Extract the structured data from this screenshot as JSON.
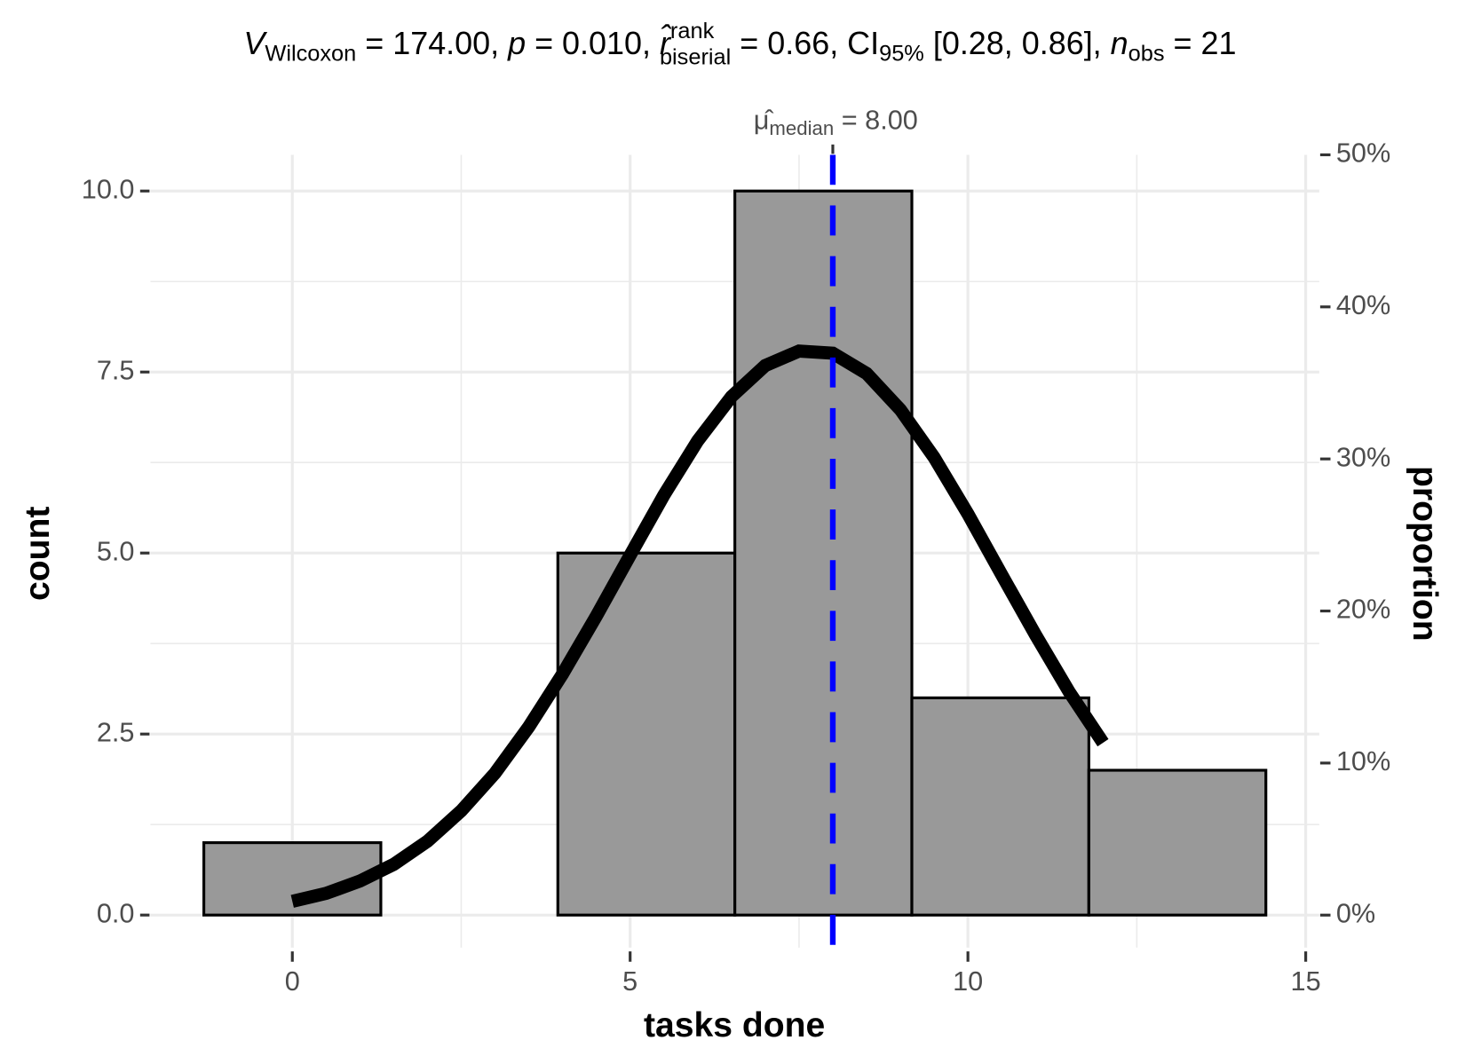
{
  "chart_data": {
    "type": "histogram",
    "title": [
      "V",
      "Wilcoxon",
      " = 174.00, ",
      "p",
      " = 0.010, ",
      "r̂",
      "rank",
      "biserial",
      " = 0.66, CI",
      "95%",
      " [0.28, 0.86], ",
      "n",
      "obs",
      " = 21"
    ],
    "xlabel": "tasks done",
    "ylabel": "count",
    "y2label": "proportion",
    "bins": [
      -1.31,
      1.31,
      3.93,
      6.55,
      9.17,
      11.79,
      14.41
    ],
    "values": [
      1,
      0,
      5,
      10,
      3,
      2
    ],
    "color": "#999999",
    "density": {
      "color": "#000000",
      "x": [
        0,
        0.5,
        1,
        1.5,
        2,
        2.5,
        3,
        3.5,
        4,
        4.5,
        5,
        5.5,
        6,
        6.5,
        7,
        7.5,
        8,
        8.5,
        9,
        9.5,
        10,
        10.5,
        11,
        11.5,
        12
      ],
      "values": [
        0.19,
        0.3,
        0.47,
        0.7,
        1.02,
        1.44,
        1.96,
        2.6,
        3.33,
        4.13,
        4.97,
        5.8,
        6.55,
        7.16,
        7.59,
        7.79,
        7.76,
        7.48,
        6.98,
        6.32,
        5.54,
        4.7,
        3.87,
        3.08,
        2.38
      ]
    },
    "median": {
      "value": 8,
      "color": "#0000ff",
      "label": [
        "μ̂",
        "median",
        " = 8.00"
      ]
    },
    "xlim": [
      -2.1,
      15.2
    ],
    "xticks": [
      0,
      5,
      10,
      15
    ],
    "ylim": [
      -0.45,
      10.5
    ],
    "yticks": [
      {
        "value": 0,
        "label": "0.0"
      },
      2.5,
      {
        "value": 5,
        "label": "5.0"
      },
      7.5,
      {
        "value": 10,
        "label": "10.0"
      }
    ],
    "y2lim": [
      -2.14,
      50
    ],
    "y2ticks": [
      {
        "value": 0,
        "label": "0%"
      },
      {
        "value": 10,
        "label": "10%"
      },
      {
        "value": 20,
        "label": "20%"
      },
      {
        "value": 30,
        "label": "30%"
      },
      {
        "value": 40,
        "label": "40%"
      },
      {
        "value": 50,
        "label": "50%"
      }
    ],
    "grid": true
  }
}
